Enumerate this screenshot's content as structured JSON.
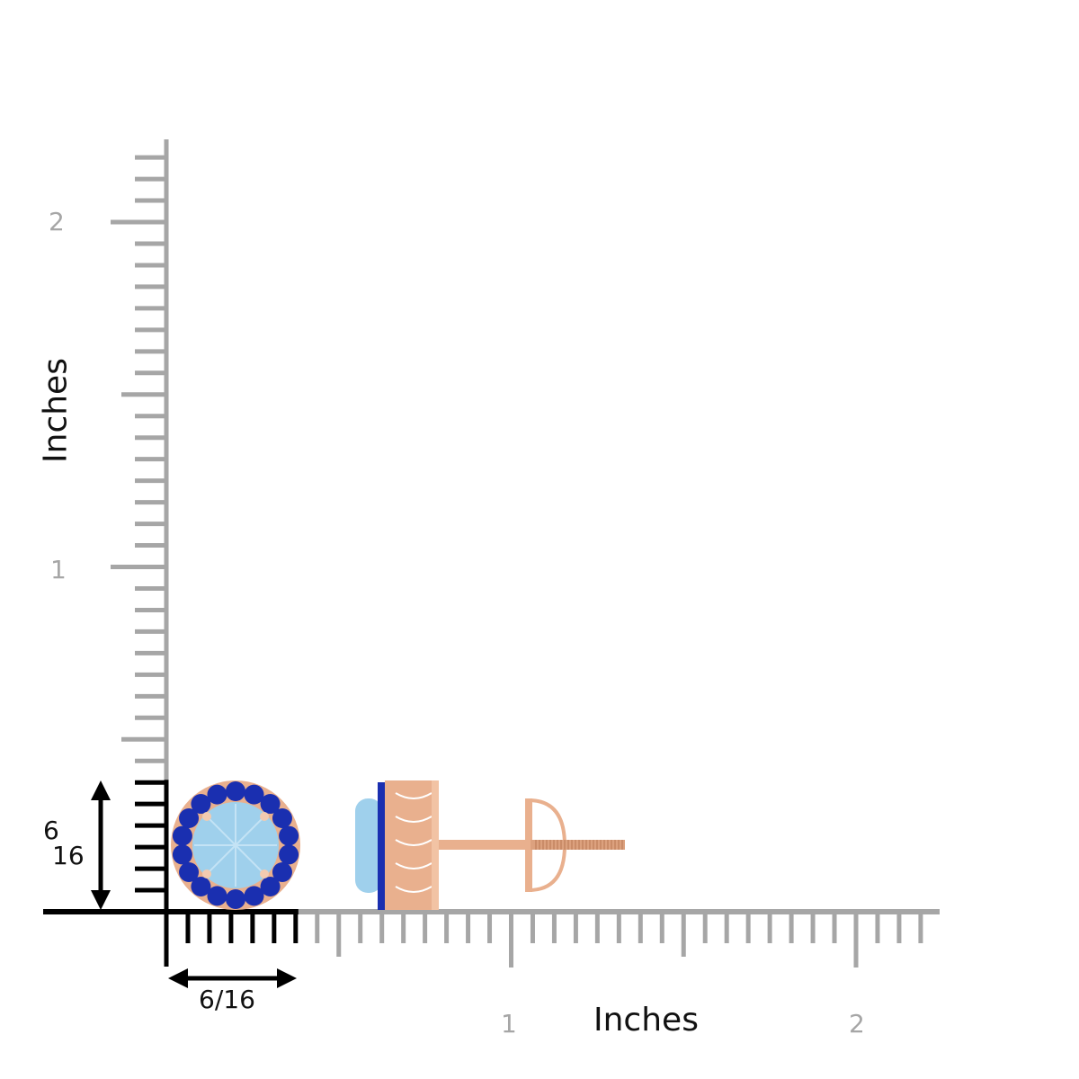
{
  "vertical_axis": {
    "title": "Inches",
    "tick_labels": [
      "1",
      "2"
    ]
  },
  "horizontal_axis": {
    "title": "Inches",
    "tick_labels": [
      "1",
      "2"
    ]
  },
  "dimensions": {
    "height": "6/16",
    "width": "6/16",
    "height_numerator": "6",
    "height_denominator": "16"
  },
  "colors": {
    "ruler": "#a6a6a6",
    "highlight": "#000000",
    "metal": "#e9b08e",
    "center_stone": "#9fd0ec",
    "halo_stones": "#1a2fb0"
  }
}
